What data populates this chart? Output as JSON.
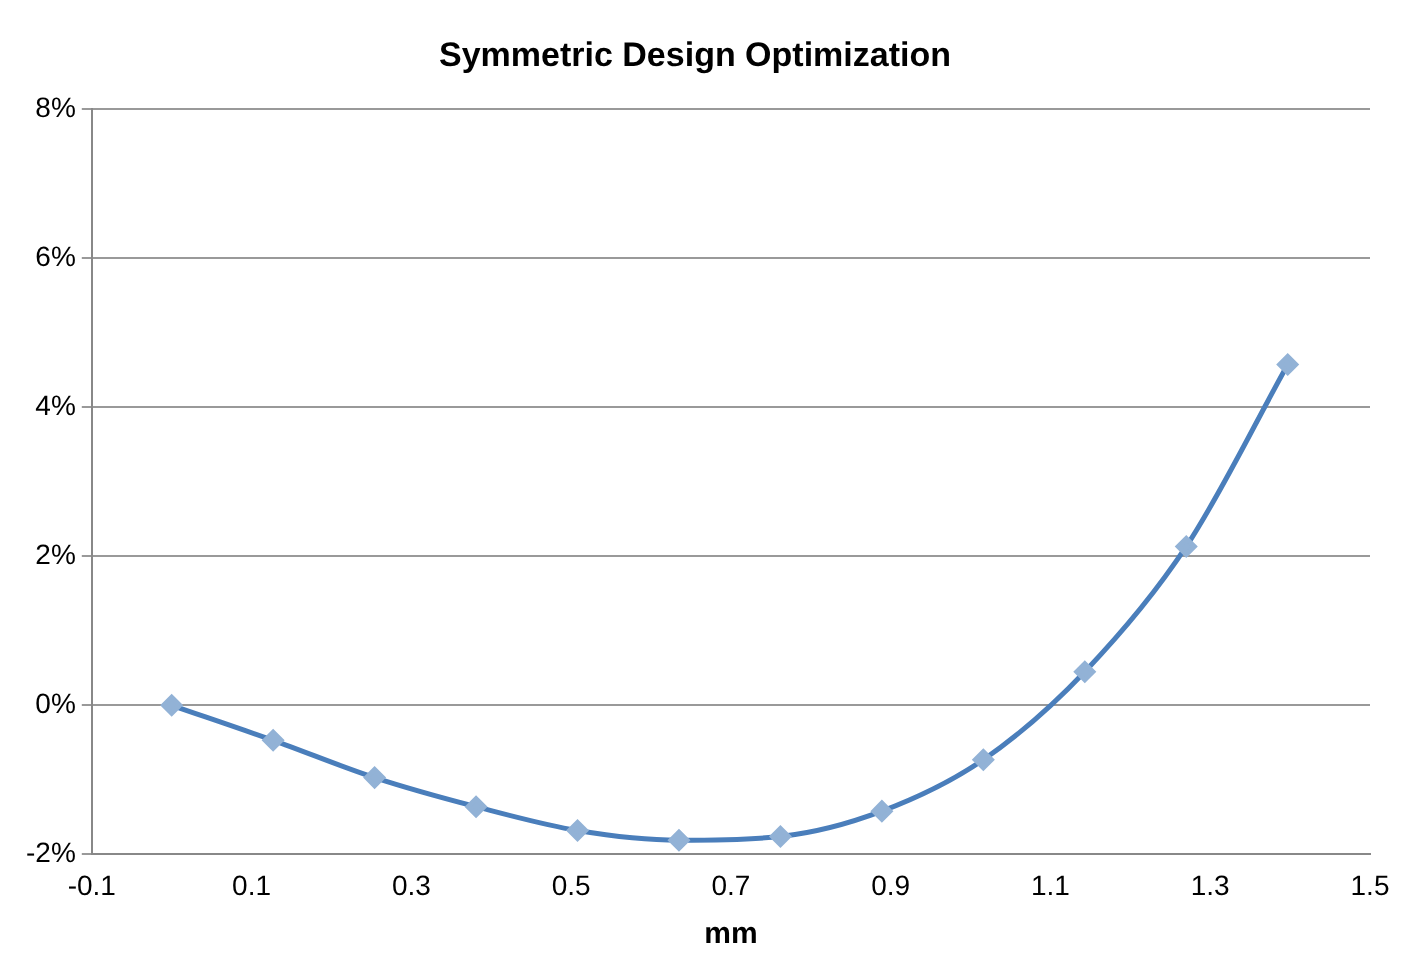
{
  "chart_data": {
    "type": "line",
    "title": "Symmetric Design Optimization",
    "xlabel": "mm",
    "x": [
      0,
      0.127,
      0.254,
      0.381,
      0.508,
      0.635,
      0.762,
      0.889,
      1.016,
      1.143,
      1.27,
      1.397
    ],
    "series": [
      {
        "color": "#4a7ebb",
        "values": [
          0,
          -0.47,
          -0.97,
          -1.36,
          -1.68,
          -1.81,
          -1.76,
          -1.42,
          -0.73,
          0.45,
          2.13,
          4.57
        ]
      }
    ],
    "xlim": [
      -0.1,
      1.5
    ],
    "xticks": [
      -0.1,
      0.1,
      0.3,
      0.5,
      0.7,
      0.9,
      1.1,
      1.3,
      1.5
    ],
    "ylim": [
      -2,
      8
    ],
    "yticks": [
      {
        "value": -2,
        "label": "-2%"
      },
      {
        "value": 0,
        "label": "0%"
      },
      {
        "value": 2,
        "label": "2%"
      },
      {
        "value": 4,
        "label": "4%"
      },
      {
        "value": 6,
        "label": "6%"
      },
      {
        "value": 8,
        "label": "8%"
      }
    ],
    "grid": "y",
    "legend": false,
    "marker": "diamond",
    "line_style": "solid"
  }
}
